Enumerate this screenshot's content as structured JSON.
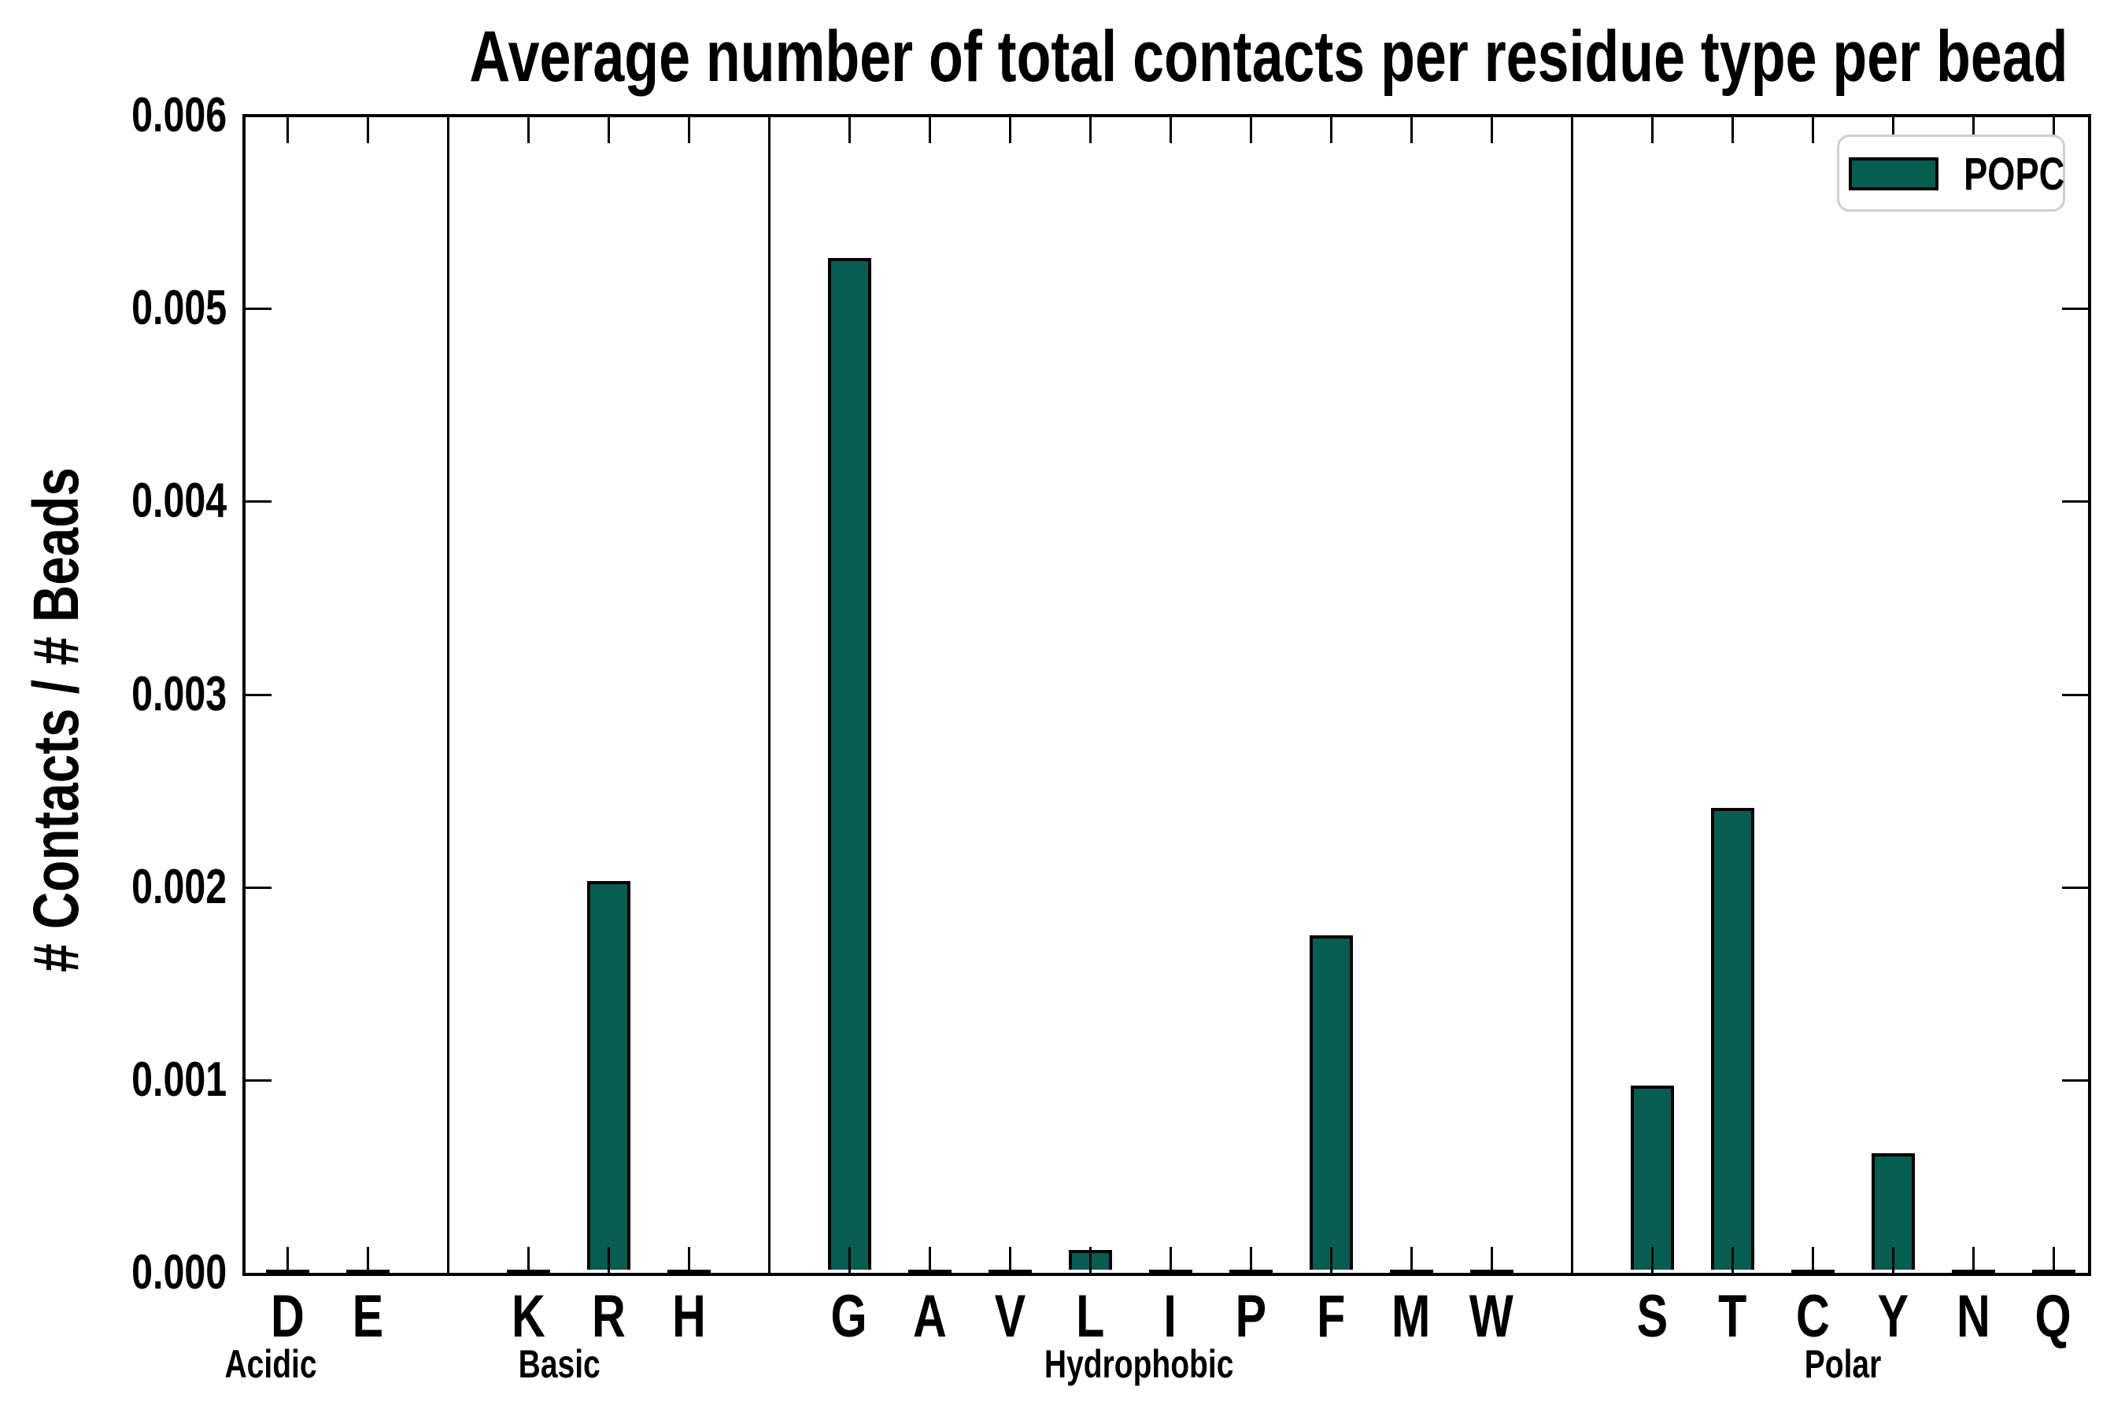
{
  "chart_data": {
    "type": "bar",
    "title": "Average number of total contacts per residue type per bead",
    "ylabel": "# Contacts / # Beads",
    "xlabel": "",
    "ylim": [
      0,
      0.006
    ],
    "ytick_labels": [
      "0.000",
      "0.001",
      "0.002",
      "0.003",
      "0.004",
      "0.005",
      "0.006"
    ],
    "grid": "off",
    "legend": {
      "label": "POPC",
      "position": "upper right",
      "swatch_color": "#075d50"
    },
    "bar_color": "#075d50",
    "bar_edge_color": "#000000",
    "groups": [
      {
        "label": "Acidic",
        "categories": [
          "D",
          "E"
        ],
        "values": [
          1e-05,
          1e-05
        ]
      },
      {
        "label": "Basic",
        "categories": [
          "K",
          "R",
          "H"
        ],
        "values": [
          1e-05,
          0.00203,
          1e-05
        ]
      },
      {
        "label": "Hydrophobic",
        "categories": [
          "G",
          "A",
          "V",
          "L",
          "I",
          "P",
          "F",
          "M",
          "W"
        ],
        "values": [
          0.00526,
          1e-05,
          1e-05,
          0.00012,
          1e-05,
          1e-05,
          0.00175,
          1e-05,
          1e-05
        ]
      },
      {
        "label": "Polar",
        "categories": [
          "S",
          "T",
          "C",
          "Y",
          "N",
          "Q"
        ],
        "values": [
          0.00097,
          0.00241,
          1e-05,
          0.00062,
          1e-05,
          1e-05
        ]
      }
    ]
  }
}
